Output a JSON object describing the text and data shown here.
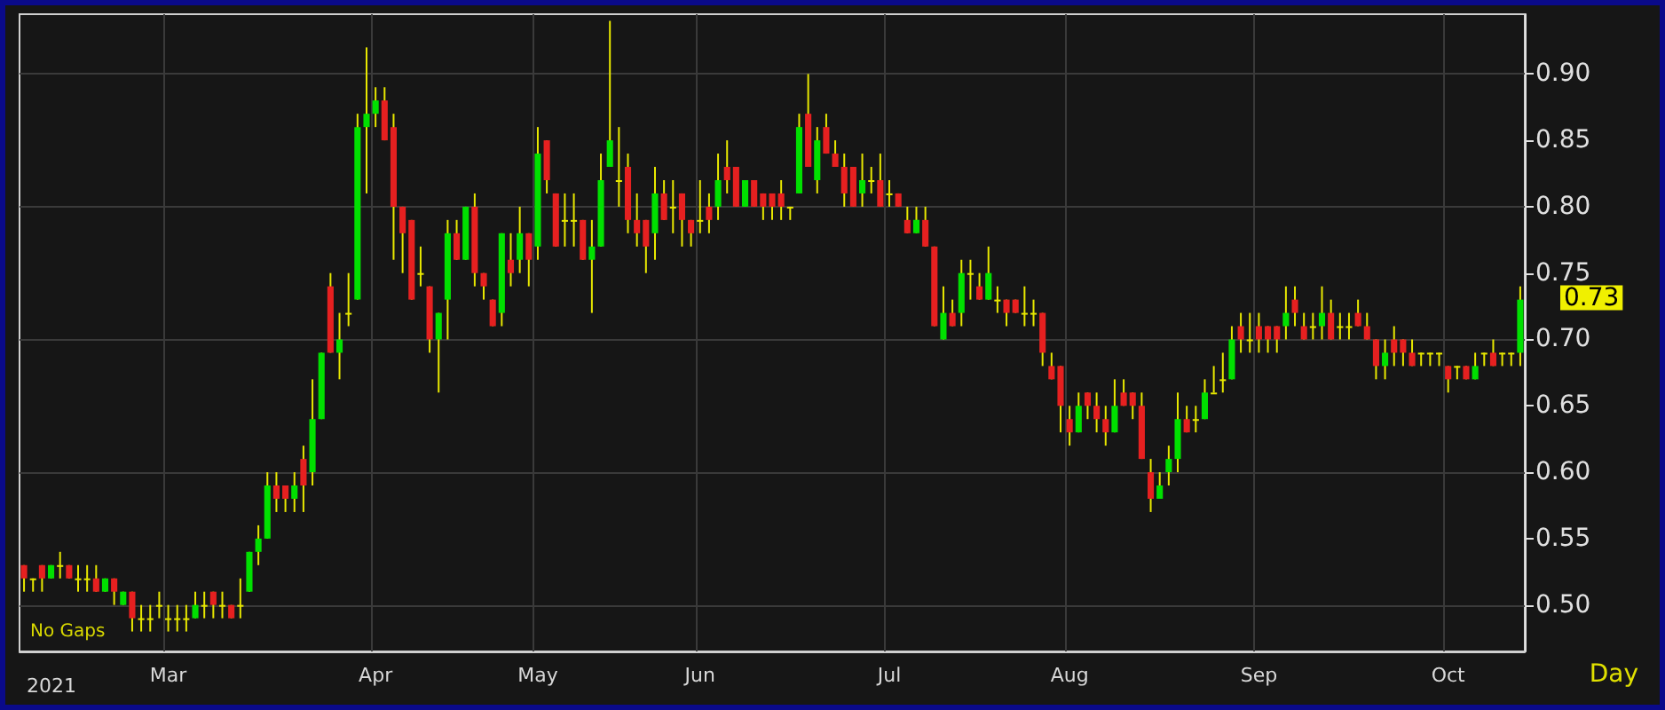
{
  "chart_data": {
    "type": "candlestick",
    "categories": [
      null,
      null,
      null,
      null,
      null,
      null,
      null,
      null,
      null,
      null,
      null,
      null,
      null,
      null,
      null,
      null,
      "Mar",
      null,
      null,
      null,
      null,
      null,
      null,
      null,
      null,
      null,
      null,
      null,
      null,
      null,
      null,
      null,
      null,
      null,
      null,
      null,
      null,
      null,
      null,
      "Apr",
      null,
      null,
      null,
      null,
      null,
      null,
      null,
      null,
      null,
      null,
      null,
      null,
      null,
      null,
      null,
      null,
      null,
      "May",
      null,
      null,
      null,
      null,
      null,
      null,
      null,
      null,
      null,
      null,
      null,
      null,
      null,
      null,
      null,
      null,
      null,
      "Jun",
      null,
      null,
      null,
      null,
      null,
      null,
      null,
      null,
      null,
      null,
      null,
      null,
      null,
      null,
      null,
      null,
      null,
      null,
      null,
      null,
      "Jul",
      null,
      null,
      null,
      null,
      null,
      null,
      null,
      null,
      null,
      null,
      null,
      null,
      null,
      null,
      null,
      null,
      null,
      null,
      null,
      "Aug",
      null,
      null,
      null,
      null,
      null,
      null,
      null,
      null,
      null,
      null,
      null,
      null,
      null,
      null,
      null,
      null,
      null,
      null,
      null,
      null,
      "Sep",
      null,
      null,
      null,
      null,
      null,
      null,
      null,
      null,
      null,
      null,
      null,
      null,
      null,
      null,
      null,
      null,
      null,
      null,
      null,
      null,
      "Oct",
      null,
      null,
      null,
      null,
      null,
      null,
      null,
      null
    ],
    "series": [
      {
        "color": "#e8e800",
        "ohlc": [
          [
            0.53,
            0.53,
            0.51,
            0.52
          ],
          [
            0.52,
            0.52,
            0.51,
            0.52
          ],
          [
            0.53,
            0.53,
            0.51,
            0.52
          ],
          [
            0.52,
            0.53,
            0.52,
            0.53
          ],
          [
            0.53,
            0.54,
            0.52,
            0.53
          ],
          [
            0.53,
            0.53,
            0.52,
            0.52
          ],
          [
            0.52,
            0.53,
            0.51,
            0.52
          ],
          [
            0.52,
            0.53,
            0.51,
            0.52
          ],
          [
            0.52,
            0.53,
            0.51,
            0.51
          ],
          [
            0.51,
            0.52,
            0.51,
            0.52
          ],
          [
            0.52,
            0.52,
            0.5,
            0.51
          ],
          [
            0.5,
            0.51,
            0.5,
            0.51
          ],
          [
            0.51,
            0.51,
            0.48,
            0.49
          ],
          [
            0.49,
            0.5,
            0.48,
            0.49
          ],
          [
            0.49,
            0.5,
            0.48,
            0.49
          ],
          [
            0.5,
            0.51,
            0.49,
            0.5
          ],
          [
            0.49,
            0.5,
            0.48,
            0.49
          ],
          [
            0.49,
            0.5,
            0.48,
            0.49
          ],
          [
            0.49,
            0.5,
            0.48,
            0.49
          ],
          [
            0.49,
            0.51,
            0.49,
            0.5
          ],
          [
            0.5,
            0.51,
            0.49,
            0.5
          ],
          [
            0.51,
            0.51,
            0.49,
            0.5
          ],
          [
            0.5,
            0.51,
            0.49,
            0.5
          ],
          [
            0.5,
            0.5,
            0.49,
            0.49
          ],
          [
            0.5,
            0.52,
            0.49,
            0.5
          ],
          [
            0.51,
            0.54,
            0.51,
            0.54
          ],
          [
            0.54,
            0.56,
            0.53,
            0.55
          ],
          [
            0.55,
            0.6,
            0.55,
            0.59
          ],
          [
            0.59,
            0.6,
            0.57,
            0.58
          ],
          [
            0.59,
            0.59,
            0.57,
            0.58
          ],
          [
            0.58,
            0.6,
            0.57,
            0.59
          ],
          [
            0.61,
            0.62,
            0.57,
            0.59
          ],
          [
            0.6,
            0.67,
            0.59,
            0.64
          ],
          [
            0.64,
            0.69,
            0.64,
            0.69
          ],
          [
            0.74,
            0.75,
            0.69,
            0.69
          ],
          [
            0.69,
            0.72,
            0.67,
            0.7
          ],
          [
            0.72,
            0.75,
            0.71,
            0.72
          ],
          [
            0.73,
            0.87,
            0.73,
            0.86
          ],
          [
            0.86,
            0.92,
            0.81,
            0.87
          ],
          [
            0.87,
            0.89,
            0.86,
            0.88
          ],
          [
            0.88,
            0.89,
            0.85,
            0.85
          ],
          [
            0.86,
            0.87,
            0.76,
            0.8
          ],
          [
            0.8,
            0.8,
            0.75,
            0.78
          ],
          [
            0.79,
            0.79,
            0.73,
            0.73
          ],
          [
            0.75,
            0.77,
            0.74,
            0.75
          ],
          [
            0.74,
            0.74,
            0.69,
            0.7
          ],
          [
            0.7,
            0.72,
            0.66,
            0.72
          ],
          [
            0.73,
            0.79,
            0.7,
            0.78
          ],
          [
            0.78,
            0.79,
            0.76,
            0.76
          ],
          [
            0.76,
            0.8,
            0.76,
            0.8
          ],
          [
            0.8,
            0.81,
            0.74,
            0.75
          ],
          [
            0.75,
            0.75,
            0.73,
            0.74
          ],
          [
            0.73,
            0.73,
            0.71,
            0.71
          ],
          [
            0.72,
            0.78,
            0.71,
            0.78
          ],
          [
            0.76,
            0.78,
            0.74,
            0.75
          ],
          [
            0.76,
            0.8,
            0.75,
            0.78
          ],
          [
            0.78,
            0.78,
            0.74,
            0.76
          ],
          [
            0.77,
            0.86,
            0.76,
            0.84
          ],
          [
            0.85,
            0.85,
            0.81,
            0.82
          ],
          [
            0.81,
            0.81,
            0.77,
            0.77
          ],
          [
            0.79,
            0.81,
            0.77,
            0.79
          ],
          [
            0.79,
            0.81,
            0.77,
            0.79
          ],
          [
            0.79,
            0.79,
            0.76,
            0.76
          ],
          [
            0.76,
            0.79,
            0.72,
            0.77
          ],
          [
            0.77,
            0.84,
            0.77,
            0.82
          ],
          [
            0.83,
            0.94,
            0.83,
            0.85
          ],
          [
            0.82,
            0.86,
            0.8,
            0.82
          ],
          [
            0.83,
            0.84,
            0.78,
            0.79
          ],
          [
            0.79,
            0.81,
            0.77,
            0.78
          ],
          [
            0.79,
            0.79,
            0.75,
            0.77
          ],
          [
            0.78,
            0.83,
            0.76,
            0.81
          ],
          [
            0.81,
            0.82,
            0.79,
            0.79
          ],
          [
            0.8,
            0.82,
            0.78,
            0.8
          ],
          [
            0.81,
            0.81,
            0.77,
            0.79
          ],
          [
            0.79,
            0.79,
            0.77,
            0.78
          ],
          [
            0.79,
            0.82,
            0.78,
            0.79
          ],
          [
            0.8,
            0.81,
            0.78,
            0.79
          ],
          [
            0.8,
            0.84,
            0.79,
            0.82
          ],
          [
            0.83,
            0.85,
            0.81,
            0.82
          ],
          [
            0.83,
            0.83,
            0.8,
            0.8
          ],
          [
            0.8,
            0.82,
            0.8,
            0.82
          ],
          [
            0.82,
            0.82,
            0.8,
            0.8
          ],
          [
            0.81,
            0.81,
            0.79,
            0.8
          ],
          [
            0.81,
            0.81,
            0.79,
            0.8
          ],
          [
            0.81,
            0.82,
            0.79,
            0.8
          ],
          [
            0.8,
            0.8,
            0.79,
            0.8
          ],
          [
            0.81,
            0.87,
            0.81,
            0.86
          ],
          [
            0.87,
            0.9,
            0.83,
            0.83
          ],
          [
            0.82,
            0.86,
            0.81,
            0.85
          ],
          [
            0.86,
            0.87,
            0.84,
            0.84
          ],
          [
            0.84,
            0.85,
            0.83,
            0.83
          ],
          [
            0.83,
            0.84,
            0.8,
            0.81
          ],
          [
            0.83,
            0.83,
            0.8,
            0.8
          ],
          [
            0.81,
            0.84,
            0.8,
            0.82
          ],
          [
            0.82,
            0.83,
            0.81,
            0.82
          ],
          [
            0.82,
            0.84,
            0.8,
            0.8
          ],
          [
            0.81,
            0.82,
            0.8,
            0.81
          ],
          [
            0.81,
            0.81,
            0.8,
            0.8
          ],
          [
            0.79,
            0.8,
            0.78,
            0.78
          ],
          [
            0.78,
            0.8,
            0.78,
            0.79
          ],
          [
            0.79,
            0.8,
            0.77,
            0.77
          ],
          [
            0.77,
            0.77,
            0.71,
            0.71
          ],
          [
            0.7,
            0.74,
            0.7,
            0.72
          ],
          [
            0.72,
            0.73,
            0.71,
            0.71
          ],
          [
            0.72,
            0.76,
            0.71,
            0.75
          ],
          [
            0.75,
            0.76,
            0.73,
            0.75
          ],
          [
            0.74,
            0.75,
            0.73,
            0.73
          ],
          [
            0.73,
            0.77,
            0.73,
            0.75
          ],
          [
            0.73,
            0.74,
            0.72,
            0.73
          ],
          [
            0.73,
            0.73,
            0.71,
            0.72
          ],
          [
            0.73,
            0.73,
            0.72,
            0.72
          ],
          [
            0.72,
            0.74,
            0.71,
            0.72
          ],
          [
            0.72,
            0.73,
            0.71,
            0.72
          ],
          [
            0.72,
            0.72,
            0.68,
            0.69
          ],
          [
            0.68,
            0.69,
            0.67,
            0.67
          ],
          [
            0.68,
            0.68,
            0.63,
            0.65
          ],
          [
            0.64,
            0.65,
            0.62,
            0.63
          ],
          [
            0.63,
            0.66,
            0.63,
            0.65
          ],
          [
            0.66,
            0.66,
            0.64,
            0.65
          ],
          [
            0.65,
            0.66,
            0.63,
            0.64
          ],
          [
            0.64,
            0.65,
            0.62,
            0.63
          ],
          [
            0.63,
            0.67,
            0.63,
            0.65
          ],
          [
            0.66,
            0.67,
            0.65,
            0.65
          ],
          [
            0.66,
            0.66,
            0.64,
            0.65
          ],
          [
            0.65,
            0.66,
            0.61,
            0.61
          ],
          [
            0.6,
            0.61,
            0.57,
            0.58
          ],
          [
            0.58,
            0.6,
            0.58,
            0.59
          ],
          [
            0.6,
            0.62,
            0.59,
            0.61
          ],
          [
            0.61,
            0.66,
            0.6,
            0.64
          ],
          [
            0.64,
            0.65,
            0.63,
            0.63
          ],
          [
            0.64,
            0.65,
            0.63,
            0.64
          ],
          [
            0.64,
            0.67,
            0.64,
            0.66
          ],
          [
            0.66,
            0.68,
            0.66,
            0.66
          ],
          [
            0.67,
            0.69,
            0.66,
            0.67
          ],
          [
            0.67,
            0.71,
            0.67,
            0.7
          ],
          [
            0.71,
            0.72,
            0.69,
            0.7
          ],
          [
            0.7,
            0.72,
            0.69,
            0.7
          ],
          [
            0.71,
            0.72,
            0.69,
            0.7
          ],
          [
            0.71,
            0.71,
            0.69,
            0.7
          ],
          [
            0.71,
            0.71,
            0.69,
            0.7
          ],
          [
            0.71,
            0.74,
            0.7,
            0.72
          ],
          [
            0.73,
            0.74,
            0.71,
            0.72
          ],
          [
            0.71,
            0.72,
            0.7,
            0.7
          ],
          [
            0.71,
            0.72,
            0.7,
            0.71
          ],
          [
            0.71,
            0.74,
            0.7,
            0.72
          ],
          [
            0.72,
            0.73,
            0.7,
            0.7
          ],
          [
            0.71,
            0.72,
            0.7,
            0.71
          ],
          [
            0.71,
            0.72,
            0.7,
            0.71
          ],
          [
            0.72,
            0.73,
            0.71,
            0.71
          ],
          [
            0.71,
            0.72,
            0.7,
            0.7
          ],
          [
            0.7,
            0.7,
            0.67,
            0.68
          ],
          [
            0.68,
            0.7,
            0.67,
            0.69
          ],
          [
            0.7,
            0.71,
            0.68,
            0.69
          ],
          [
            0.7,
            0.7,
            0.68,
            0.69
          ],
          [
            0.69,
            0.7,
            0.68,
            0.68
          ],
          [
            0.69,
            0.69,
            0.68,
            0.69
          ],
          [
            0.69,
            0.69,
            0.68,
            0.69
          ],
          [
            0.69,
            0.69,
            0.68,
            0.69
          ],
          [
            0.68,
            0.68,
            0.66,
            0.67
          ],
          [
            0.68,
            0.68,
            0.67,
            0.68
          ],
          [
            0.68,
            0.68,
            0.67,
            0.67
          ],
          [
            0.67,
            0.69,
            0.67,
            0.68
          ],
          [
            0.69,
            0.69,
            0.68,
            0.69
          ],
          [
            0.69,
            0.7,
            0.68,
            0.68
          ],
          [
            0.69,
            0.69,
            0.68,
            0.69
          ],
          [
            0.69,
            0.69,
            0.68,
            0.69
          ],
          [
            0.69,
            0.74,
            0.68,
            0.73
          ]
        ],
        "colors": [
          "#e62020",
          "#e8e800",
          "#e62020",
          "#00e000",
          "#e8e800",
          "#e62020",
          "#e8e800",
          "#e8e800",
          "#e62020",
          "#00e000",
          "#e62020",
          "#00e000",
          "#e62020",
          "#e8e800",
          "#e8e800",
          "#e8e800",
          "#e8e800",
          "#e8e800",
          "#e8e800",
          "#00e000",
          "#e8e800",
          "#e62020",
          "#e8e800",
          "#e62020",
          "#e8e800",
          "#00e000",
          "#00e000",
          "#00e000",
          "#e62020",
          "#e62020",
          "#00e000",
          "#e62020",
          "#00e000",
          "#00e000",
          "#e62020",
          "#00e000",
          "#e8e800",
          "#00e000",
          "#00e000",
          "#00e000",
          "#e62020",
          "#e62020",
          "#e62020",
          "#e62020",
          "#e8e800",
          "#e62020",
          "#00e000",
          "#00e000",
          "#e62020",
          "#00e000",
          "#e62020",
          "#e62020",
          "#e62020",
          "#00e000",
          "#e62020",
          "#00e000",
          "#e62020",
          "#00e000",
          "#e62020",
          "#e62020",
          "#e8e800",
          "#e8e800",
          "#e62020",
          "#00e000",
          "#00e000",
          "#00e000",
          "#e8e800",
          "#e62020",
          "#e62020",
          "#e62020",
          "#00e000",
          "#e62020",
          "#e8e800",
          "#e62020",
          "#e62020",
          "#e8e800",
          "#e62020",
          "#00e000",
          "#e62020",
          "#e62020",
          "#00e000",
          "#e62020",
          "#e62020",
          "#e62020",
          "#e62020",
          "#e8e800",
          "#00e000",
          "#e62020",
          "#00e000",
          "#e62020",
          "#e62020",
          "#e62020",
          "#e62020",
          "#00e000",
          "#e8e800",
          "#e62020",
          "#e8e800",
          "#e62020",
          "#e62020",
          "#00e000",
          "#e62020",
          "#e62020",
          "#00e000",
          "#e62020",
          "#00e000",
          "#e8e800",
          "#e62020",
          "#00e000",
          "#e8e800",
          "#e62020",
          "#e62020",
          "#e8e800",
          "#e8e800",
          "#e62020",
          "#e62020",
          "#e62020",
          "#e62020",
          "#00e000",
          "#e62020",
          "#e62020",
          "#e62020",
          "#00e000",
          "#e62020",
          "#e62020",
          "#e62020",
          "#e62020",
          "#00e000",
          "#00e000",
          "#00e000",
          "#e62020",
          "#e8e800",
          "#00e000",
          "#e8e800",
          "#e8e800",
          "#00e000",
          "#e62020",
          "#e8e800",
          "#e62020",
          "#e62020",
          "#e62020",
          "#00e000",
          "#e62020",
          "#e62020",
          "#e8e800",
          "#00e000",
          "#e62020",
          "#e8e800",
          "#e8e800",
          "#e62020",
          "#e62020",
          "#e62020",
          "#00e000",
          "#e62020",
          "#e62020",
          "#e62020",
          "#e8e800",
          "#e8e800",
          "#e8e800",
          "#e62020",
          "#e8e800",
          "#e62020",
          "#00e000",
          "#e8e800",
          "#e62020",
          "#e8e800",
          "#e8e800",
          "#00e000"
        ]
      }
    ],
    "ylim": [
      0.465,
      0.945
    ],
    "yticks": [
      {
        "value": 0.5,
        "label": "0.50"
      },
      {
        "value": 0.55,
        "label": "0.55"
      },
      {
        "value": 0.6,
        "label": "0.60"
      },
      {
        "value": 0.65,
        "label": "0.65"
      },
      {
        "value": 0.7,
        "label": "0.70"
      },
      {
        "value": 0.75,
        "label": "0.75"
      },
      {
        "value": 0.8,
        "label": "0.80"
      },
      {
        "value": 0.85,
        "label": "0.85"
      },
      {
        "value": 0.9,
        "label": "0.90"
      }
    ],
    "grid": true,
    "annotations": [
      "No Gaps",
      "2021",
      "Day",
      "0.73"
    ]
  }
}
